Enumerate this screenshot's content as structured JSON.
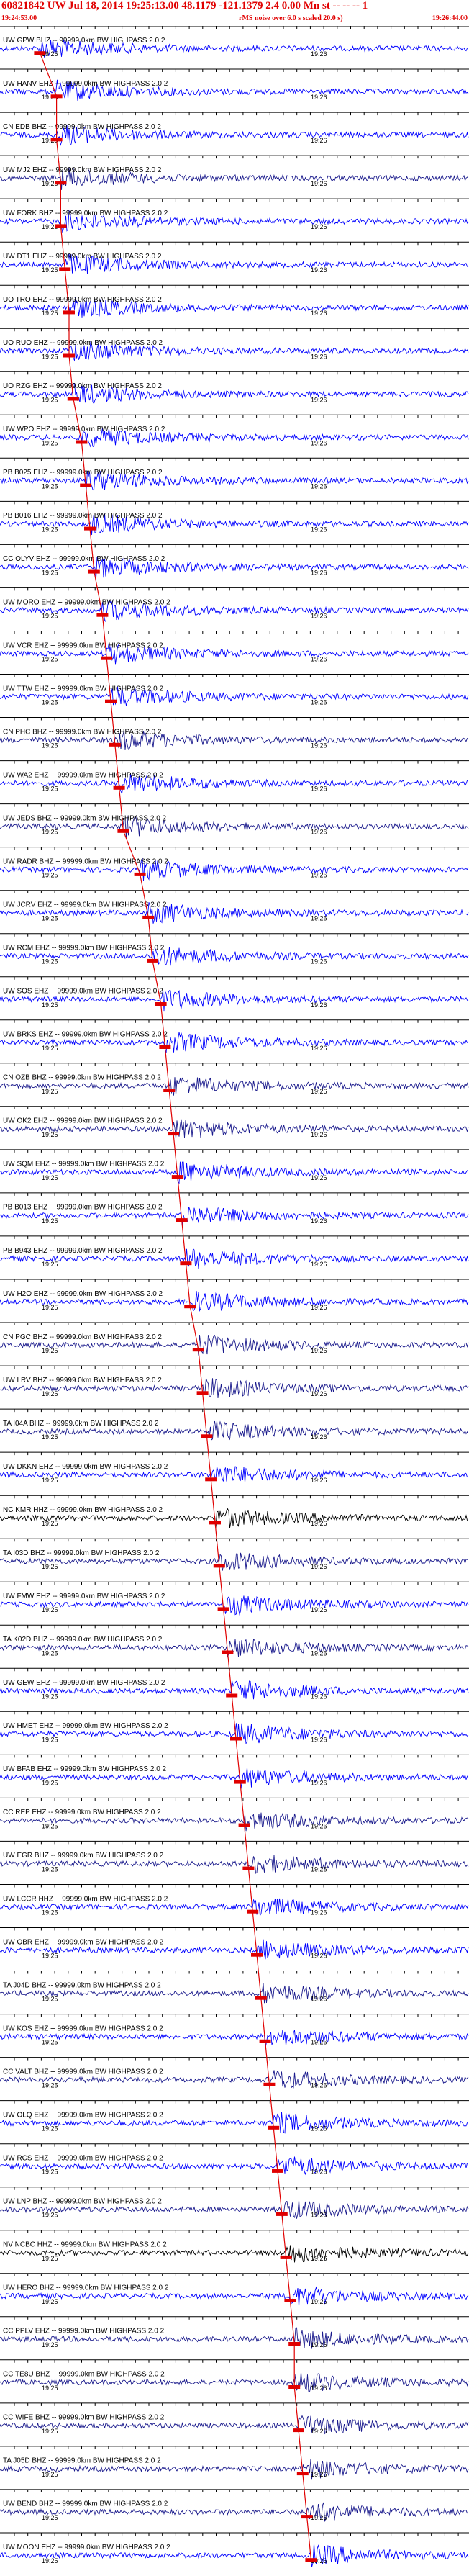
{
  "header": {
    "title": "60821842 UW Jul 18, 2014 19:25:13.00   48.1179  -121.1379  2.4 0.00 Mn st  -- -- --  1",
    "start_time": "19:24:53.00",
    "noise_note": "rMS noise over 6.0 s scaled 20.0 s)",
    "end_time": "19:26:44.00"
  },
  "chart_data": {
    "type": "seismogram-record-section",
    "time_ticks": [
      "19:25",
      "19:26"
    ],
    "traces": [
      {
        "label": "UW GPW BHZ -- 99999.0km BW  HIGHPASS  2.0  2",
        "color": "#0000ff",
        "pick": 0.03
      },
      {
        "label": "UW HANV EHZ -- 99999.0km BW  HIGHPASS  2.0  2",
        "color": "#0000ff",
        "pick": 0.07
      },
      {
        "label": "CN EDB BHZ -- 99999.0km BW  HIGHPASS  2.0  2",
        "color": "#0000ff",
        "pick": 0.07
      },
      {
        "label": "UW MJ2 EHZ -- 99999.0km BW  HIGHPASS  2.0  2",
        "color": "#1a1a8c",
        "pick": 0.08
      },
      {
        "label": "UW FORK BHZ -- 99999.0km BW  HIGHPASS  2.0  2",
        "color": "#0000ff",
        "pick": 0.08
      },
      {
        "label": "UW DT1 EHZ -- 99999.0km BW  HIGHPASS  2.0  2",
        "color": "#0000ff",
        "pick": 0.09
      },
      {
        "label": "UO TRO EHZ -- 99999.0km BW  HIGHPASS  2.0  2",
        "color": "#0000ff",
        "pick": 0.1
      },
      {
        "label": "UO RUO EHZ -- 99999.0km BW  HIGHPASS  2.0  2",
        "color": "#0000ff",
        "pick": 0.1
      },
      {
        "label": "UO RZG EHZ -- 99999.0km BW  HIGHPASS  2.0  2",
        "color": "#0000ff",
        "pick": 0.11
      },
      {
        "label": "UW WPO EHZ -- 99999.0km BW  HIGHPASS  2.0  2",
        "color": "#0000ff",
        "pick": 0.13
      },
      {
        "label": "PB B025 EHZ -- 99999.0km BW  HIGHPASS  2.0  2",
        "color": "#0000ff",
        "pick": 0.14
      },
      {
        "label": "PB B016 EHZ -- 99999.0km BW  HIGHPASS  2.0  2",
        "color": "#0000ff",
        "pick": 0.15
      },
      {
        "label": "CC OLYV EHZ -- 99999.0km BW  HIGHPASS  2.0  2",
        "color": "#0000ff",
        "pick": 0.16
      },
      {
        "label": "UW MORO EHZ -- 99999.0km BW  HIGHPASS  2.0  2",
        "color": "#0000ff",
        "pick": 0.18
      },
      {
        "label": "UW VCR EHZ -- 99999.0km BW  HIGHPASS  2.0  2",
        "color": "#0000ff",
        "pick": 0.19
      },
      {
        "label": "UW TTW EHZ -- 99999.0km BW  HIGHPASS  2.0  2",
        "color": "#0000ff",
        "pick": 0.2
      },
      {
        "label": "CN PHC BHZ -- 99999.0km BW  HIGHPASS  2.0  2",
        "color": "#1a1a8c",
        "pick": 0.21
      },
      {
        "label": "UW WA2 EHZ -- 99999.0km BW  HIGHPASS  2.0  2",
        "color": "#0000ff",
        "pick": 0.22
      },
      {
        "label": "UW JEDS BHZ -- 99999.0km BW  HIGHPASS  2.0  2",
        "color": "#1a1a8c",
        "pick": 0.23
      },
      {
        "label": "UW RADR BHZ -- 99999.0km BW  HIGHPASS  2.0  2",
        "color": "#0000ff",
        "pick": 0.27
      },
      {
        "label": "UW JCRV EHZ -- 99999.0km BW  HIGHPASS  2.0  2",
        "color": "#0000ff",
        "pick": 0.29
      },
      {
        "label": "UW RCM EHZ -- 99999.0km BW  HIGHPASS  2.0  2",
        "color": "#0000ff",
        "pick": 0.3
      },
      {
        "label": "UW SOS EHZ -- 99999.0km BW  HIGHPASS  2.0  2",
        "color": "#0000ff",
        "pick": 0.32
      },
      {
        "label": "UW BRKS EHZ -- 99999.0km BW  HIGHPASS  2.0  2",
        "color": "#0000ff",
        "pick": 0.33
      },
      {
        "label": "CN OZB BHZ -- 99999.0km BW  HIGHPASS  2.0  2",
        "color": "#1a1a8c",
        "pick": 0.34
      },
      {
        "label": "UW OK2 EHZ -- 99999.0km BW  HIGHPASS  2.0  2",
        "color": "#1a1a8c",
        "pick": 0.35
      },
      {
        "label": "UW SQM EHZ -- 99999.0km BW  HIGHPASS  2.0  2",
        "color": "#0000ff",
        "pick": 0.36
      },
      {
        "label": "PB B013 EHZ -- 99999.0km BW  HIGHPASS  2.0  2",
        "color": "#0000ff",
        "pick": 0.37
      },
      {
        "label": "PB B943 EHZ -- 99999.0km BW  HIGHPASS  2.0  2",
        "color": "#0000ff",
        "pick": 0.38
      },
      {
        "label": "UW H2O EHZ -- 99999.0km BW  HIGHPASS  2.0  2",
        "color": "#0000ff",
        "pick": 0.39
      },
      {
        "label": "CN PGC BHZ -- 99999.0km BW  HIGHPASS  2.0  2",
        "color": "#1a1a8c",
        "pick": 0.41
      },
      {
        "label": "UW LRV BHZ -- 99999.0km BW  HIGHPASS  2.0  2",
        "color": "#1a1a8c",
        "pick": 0.42
      },
      {
        "label": "TA I04A BHZ -- 99999.0km BW  HIGHPASS  2.0  2",
        "color": "#1a1a8c",
        "pick": 0.43
      },
      {
        "label": "UW DKKN EHZ -- 99999.0km BW  HIGHPASS  2.0  2",
        "color": "#0000ff",
        "pick": 0.44
      },
      {
        "label": "NC KMR HHZ -- 99999.0km BW  HIGHPASS  2.0  2",
        "color": "#000000",
        "pick": 0.45
      },
      {
        "label": "TA I03D BHZ -- 99999.0km BW  HIGHPASS  2.0  2",
        "color": "#1a1a8c",
        "pick": 0.46
      },
      {
        "label": "UW FMW EHZ -- 99999.0km BW  HIGHPASS  2.0  2",
        "color": "#0000ff",
        "pick": 0.47
      },
      {
        "label": "TA K02D BHZ -- 99999.0km BW  HIGHPASS  2.0  2",
        "color": "#1a1a8c",
        "pick": 0.48
      },
      {
        "label": "UW GEW EHZ -- 99999.0km BW  HIGHPASS  2.0  2",
        "color": "#0000ff",
        "pick": 0.49
      },
      {
        "label": "UW HMET EHZ -- 99999.0km BW  HIGHPASS  2.0  2",
        "color": "#0000ff",
        "pick": 0.5
      },
      {
        "label": "UW BFAB EHZ -- 99999.0km BW  HIGHPASS  2.0  2",
        "color": "#0000ff",
        "pick": 0.51
      },
      {
        "label": "CC REP EHZ -- 99999.0km BW  HIGHPASS  2.0  2",
        "color": "#1a1a8c",
        "pick": 0.52
      },
      {
        "label": "UW EGR BHZ -- 99999.0km BW  HIGHPASS  2.0  2",
        "color": "#1a1a8c",
        "pick": 0.53
      },
      {
        "label": "UW LCCR HHZ -- 99999.0km BW  HIGHPASS  2.0  2",
        "color": "#0000ff",
        "pick": 0.54
      },
      {
        "label": "UW OBR EHZ -- 99999.0km BW  HIGHPASS  2.0  2",
        "color": "#0000ff",
        "pick": 0.55
      },
      {
        "label": "TA J04D BHZ -- 99999.0km BW  HIGHPASS  2.0  2",
        "color": "#1a1a8c",
        "pick": 0.56
      },
      {
        "label": "UW KOS EHZ -- 99999.0km BW  HIGHPASS  2.0  2",
        "color": "#0000ff",
        "pick": 0.57
      },
      {
        "label": "CC VALT BHZ -- 99999.0km BW  HIGHPASS  2.0  2",
        "color": "#1a1a8c",
        "pick": 0.58
      },
      {
        "label": "UW OLQ EHZ -- 99999.0km BW  HIGHPASS  2.0  2",
        "color": "#0000ff",
        "pick": 0.59
      },
      {
        "label": "UW RCS EHZ -- 99999.0km BW  HIGHPASS  2.0  2",
        "color": "#0000ff",
        "pick": 0.6
      },
      {
        "label": "UW LNP BHZ -- 99999.0km BW  HIGHPASS  2.0  2",
        "color": "#1a1a8c",
        "pick": 0.61
      },
      {
        "label": "NV NCBC HHZ -- 99999.0km BW  HIGHPASS  2.0  2",
        "color": "#000000",
        "pick": 0.62
      },
      {
        "label": "UW HERO BHZ -- 99999.0km BW  HIGHPASS  2.0  2",
        "color": "#0000ff",
        "pick": 0.63
      },
      {
        "label": "CC PPLV EHZ -- 99999.0km BW  HIGHPASS  2.0  2",
        "color": "#1a1a8c",
        "pick": 0.64
      },
      {
        "label": "CC TE8U BHZ -- 99999.0km BW  HIGHPASS  2.0  2",
        "color": "#1a1a8c",
        "pick": 0.64
      },
      {
        "label": "CC WIFE BHZ -- 99999.0km BW  HIGHPASS  2.0  2",
        "color": "#1a1a8c",
        "pick": 0.65
      },
      {
        "label": "TA J05D BHZ -- 99999.0km BW  HIGHPASS  2.0  2",
        "color": "#1a1a8c",
        "pick": 0.66
      },
      {
        "label": "UW BEND BHZ -- 99999.0km BW  HIGHPASS  2.0  2",
        "color": "#1a1a8c",
        "pick": 0.67
      },
      {
        "label": "UW MOON EHZ -- 99999.0km BW  HIGHPASS  2.0  2",
        "color": "#0000ff",
        "pick": 0.68
      }
    ]
  }
}
